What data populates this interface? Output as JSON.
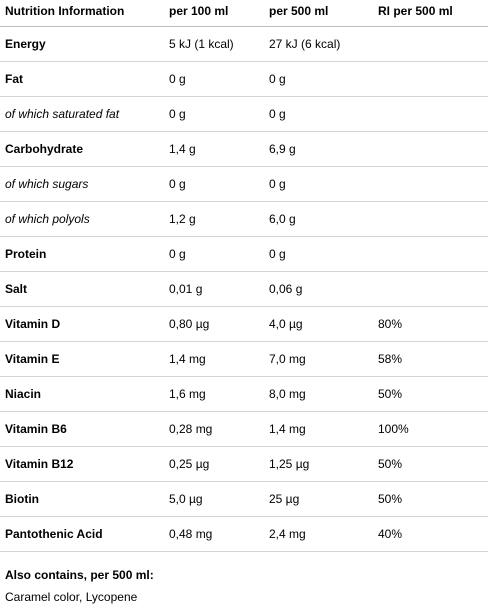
{
  "header": {
    "col0": "Nutrition Information",
    "col1": "per 100 ml",
    "col2": "per 500 ml",
    "col3": "RI per 500 ml"
  },
  "rows": [
    {
      "name": "Energy",
      "per100": "5 kJ (1 kcal)",
      "per500": "27 kJ (6 kcal)",
      "ri": "",
      "style": "bold"
    },
    {
      "name": "Fat",
      "per100": "0 g",
      "per500": "0 g",
      "ri": "",
      "style": "bold"
    },
    {
      "name": "of which saturated fat",
      "per100": "0 g",
      "per500": "0 g",
      "ri": "",
      "style": "italic"
    },
    {
      "name": "Carbohydrate",
      "per100": "1,4 g",
      "per500": "6,9 g",
      "ri": "",
      "style": "bold"
    },
    {
      "name": "of which sugars",
      "per100": "0 g",
      "per500": "0 g",
      "ri": "",
      "style": "italic"
    },
    {
      "name": "of which polyols",
      "per100": "1,2 g",
      "per500": "6,0 g",
      "ri": "",
      "style": "italic"
    },
    {
      "name": "Protein",
      "per100": "0 g",
      "per500": "0 g",
      "ri": "",
      "style": "bold"
    },
    {
      "name": "Salt",
      "per100": "0,01 g",
      "per500": "0,06 g",
      "ri": "",
      "style": "bold"
    },
    {
      "name": "Vitamin D",
      "per100": "0,80 µg",
      "per500": "4,0 µg",
      "ri": "80%",
      "style": "bold"
    },
    {
      "name": "Vitamin E",
      "per100": "1,4 mg",
      "per500": "7,0 mg",
      "ri": "58%",
      "style": "bold"
    },
    {
      "name": "Niacin",
      "per100": "1,6 mg",
      "per500": "8,0 mg",
      "ri": "50%",
      "style": "bold"
    },
    {
      "name": "Vitamin B6",
      "per100": "0,28 mg",
      "per500": "1,4 mg",
      "ri": "100%",
      "style": "bold"
    },
    {
      "name": "Vitamin B12",
      "per100": "0,25 µg",
      "per500": "1,25 µg",
      "ri": "50%",
      "style": "bold"
    },
    {
      "name": "Biotin",
      "per100": "5,0 µg",
      "per500": "25 µg",
      "ri": "50%",
      "style": "bold"
    },
    {
      "name": "Pantothenic Acid",
      "per100": "0,48 mg",
      "per500": "2,4 mg",
      "ri": "40%",
      "style": "bold"
    }
  ],
  "also_contains": {
    "label": "Also contains, per 500 ml:",
    "value": "Caramel color, Lycopene"
  }
}
